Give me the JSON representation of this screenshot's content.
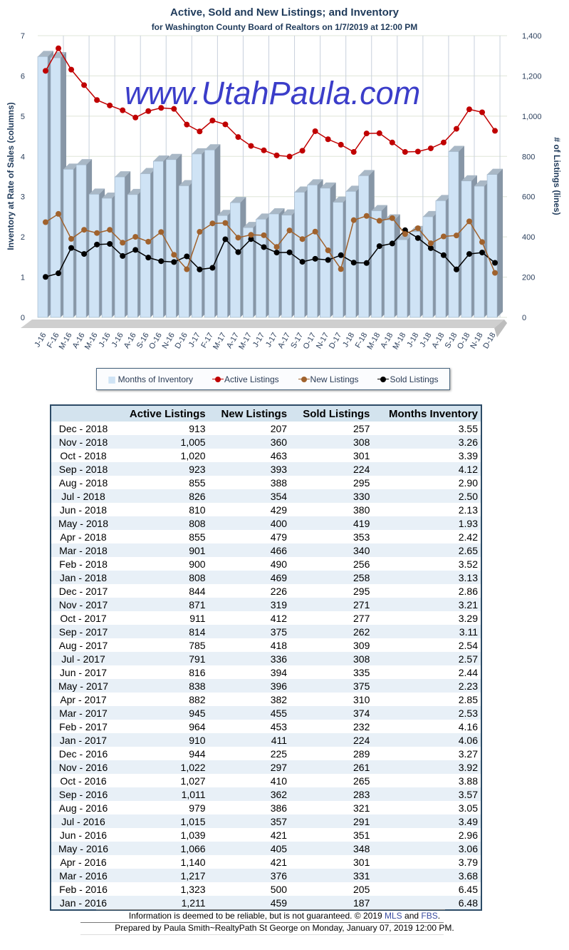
{
  "chart_data": {
    "type": "bar+line",
    "title": "Active, Sold and New Listings; and Inventory",
    "subtitle": "for Washington County Board of Realtors on 1/7/2019 at 12:00 PM",
    "ylabel_left": "Inventory at Rate of Sales (columns)",
    "ylabel_right": "# of Listings (lines)",
    "ylim_left": [
      0,
      7
    ],
    "ylim_right": [
      0,
      1400
    ],
    "yticks_left": [
      "0",
      "1",
      "2",
      "3",
      "4",
      "5",
      "6",
      "7"
    ],
    "yticks_right": [
      "0",
      "200",
      "400",
      "600",
      "800",
      "1,000",
      "1,200",
      "1,400"
    ],
    "categories": [
      "J-16",
      "F-16",
      "M-16",
      "A-16",
      "M-16",
      "J-16",
      "J-16",
      "A-16",
      "S-16",
      "O-16",
      "N-16",
      "D-16",
      "J-17",
      "F-17",
      "M-17",
      "A-17",
      "M-17",
      "J-17",
      "J-17",
      "A-17",
      "S-17",
      "O-17",
      "N-17",
      "D-17",
      "J-18",
      "F-18",
      "M-18",
      "A-18",
      "M-18",
      "J-18",
      "J-18",
      "A-18",
      "S-18",
      "O-18",
      "N-18",
      "D-18"
    ],
    "legend_position": "bottom",
    "series": [
      {
        "name": "Months of Inventory",
        "type": "bar",
        "axis": "left",
        "color": "#cfe3f5",
        "values": [
          6.48,
          6.45,
          3.68,
          3.79,
          3.06,
          2.96,
          3.49,
          3.05,
          3.57,
          3.88,
          3.92,
          3.27,
          4.06,
          4.16,
          2.53,
          2.85,
          2.23,
          2.44,
          2.57,
          2.54,
          3.11,
          3.29,
          3.21,
          2.86,
          3.13,
          3.52,
          2.65,
          2.42,
          1.93,
          2.13,
          2.5,
          2.9,
          4.12,
          3.39,
          3.26,
          3.55
        ]
      },
      {
        "name": "Active Listings",
        "type": "line",
        "axis": "right",
        "color": "#c00000",
        "values": [
          1211,
          1323,
          1217,
          1140,
          1066,
          1039,
          1015,
          979,
          1011,
          1027,
          1022,
          944,
          910,
          964,
          945,
          882,
          838,
          816,
          791,
          785,
          814,
          911,
          871,
          844,
          808,
          900,
          901,
          855,
          808,
          810,
          826,
          855,
          923,
          1020,
          1005,
          913
        ]
      },
      {
        "name": "New Listings",
        "type": "line",
        "axis": "right",
        "color": "#a0622d",
        "values": [
          459,
          500,
          376,
          421,
          405,
          421,
          357,
          386,
          362,
          410,
          297,
          225,
          411,
          453,
          455,
          382,
          396,
          394,
          336,
          418,
          375,
          412,
          319,
          226,
          469,
          490,
          466,
          479,
          400,
          429,
          354,
          388,
          393,
          463,
          360,
          207
        ]
      },
      {
        "name": "Sold Listings",
        "type": "line",
        "axis": "right",
        "color": "#000000",
        "values": [
          187,
          205,
          331,
          301,
          348,
          351,
          291,
          321,
          283,
          265,
          261,
          289,
          224,
          232,
          374,
          310,
          375,
          335,
          308,
          309,
          262,
          277,
          271,
          295,
          258,
          256,
          340,
          353,
          419,
          380,
          330,
          295,
          224,
          301,
          308,
          257
        ]
      }
    ]
  },
  "watermark": "www.UtahPaula.com",
  "table": {
    "headers": [
      "",
      "Active Listings",
      "New Listings",
      "Sold Listings",
      "Months Inventory"
    ],
    "rows": [
      [
        "Dec - 2018",
        "913",
        "207",
        "257",
        "3.55"
      ],
      [
        "Nov - 2018",
        "1,005",
        "360",
        "308",
        "3.26"
      ],
      [
        "Oct - 2018",
        "1,020",
        "463",
        "301",
        "3.39"
      ],
      [
        "Sep - 2018",
        "923",
        "393",
        "224",
        "4.12"
      ],
      [
        "Aug - 2018",
        "855",
        "388",
        "295",
        "2.90"
      ],
      [
        "Jul - 2018",
        "826",
        "354",
        "330",
        "2.50"
      ],
      [
        "Jun - 2018",
        "810",
        "429",
        "380",
        "2.13"
      ],
      [
        "May - 2018",
        "808",
        "400",
        "419",
        "1.93"
      ],
      [
        "Apr - 2018",
        "855",
        "479",
        "353",
        "2.42"
      ],
      [
        "Mar - 2018",
        "901",
        "466",
        "340",
        "2.65"
      ],
      [
        "Feb - 2018",
        "900",
        "490",
        "256",
        "3.52"
      ],
      [
        "Jan - 2018",
        "808",
        "469",
        "258",
        "3.13"
      ],
      [
        "Dec - 2017",
        "844",
        "226",
        "295",
        "2.86"
      ],
      [
        "Nov - 2017",
        "871",
        "319",
        "271",
        "3.21"
      ],
      [
        "Oct - 2017",
        "911",
        "412",
        "277",
        "3.29"
      ],
      [
        "Sep - 2017",
        "814",
        "375",
        "262",
        "3.11"
      ],
      [
        "Aug - 2017",
        "785",
        "418",
        "309",
        "2.54"
      ],
      [
        "Jul - 2017",
        "791",
        "336",
        "308",
        "2.57"
      ],
      [
        "Jun - 2017",
        "816",
        "394",
        "335",
        "2.44"
      ],
      [
        "May - 2017",
        "838",
        "396",
        "375",
        "2.23"
      ],
      [
        "Apr - 2017",
        "882",
        "382",
        "310",
        "2.85"
      ],
      [
        "Mar - 2017",
        "945",
        "455",
        "374",
        "2.53"
      ],
      [
        "Feb - 2017",
        "964",
        "453",
        "232",
        "4.16"
      ],
      [
        "Jan - 2017",
        "910",
        "411",
        "224",
        "4.06"
      ],
      [
        "Dec - 2016",
        "944",
        "225",
        "289",
        "3.27"
      ],
      [
        "Nov - 2016",
        "1,022",
        "297",
        "261",
        "3.92"
      ],
      [
        "Oct - 2016",
        "1,027",
        "410",
        "265",
        "3.88"
      ],
      [
        "Sep - 2016",
        "1,011",
        "362",
        "283",
        "3.57"
      ],
      [
        "Aug - 2016",
        "979",
        "386",
        "321",
        "3.05"
      ],
      [
        "Jul - 2016",
        "1,015",
        "357",
        "291",
        "3.49"
      ],
      [
        "Jun - 2016",
        "1,039",
        "421",
        "351",
        "2.96"
      ],
      [
        "May - 2016",
        "1,066",
        "405",
        "348",
        "3.06"
      ],
      [
        "Apr - 2016",
        "1,140",
        "421",
        "301",
        "3.79"
      ],
      [
        "Mar - 2016",
        "1,217",
        "376",
        "331",
        "3.68"
      ],
      [
        "Feb - 2016",
        "1,323",
        "500",
        "205",
        "6.45"
      ],
      [
        "Jan - 2016",
        "1,211",
        "459",
        "187",
        "6.48"
      ]
    ]
  },
  "footer": {
    "line1_text": "Information is deemed to be reliable, but is not guaranteed. © 2019 ",
    "mls": "MLS",
    "and": " and ",
    "fbs": "FBS",
    "period": ".",
    "line2": "Prepared by Paula Smith~RealtyPath St George on Monday, January 07, 2019 12:00 PM."
  }
}
